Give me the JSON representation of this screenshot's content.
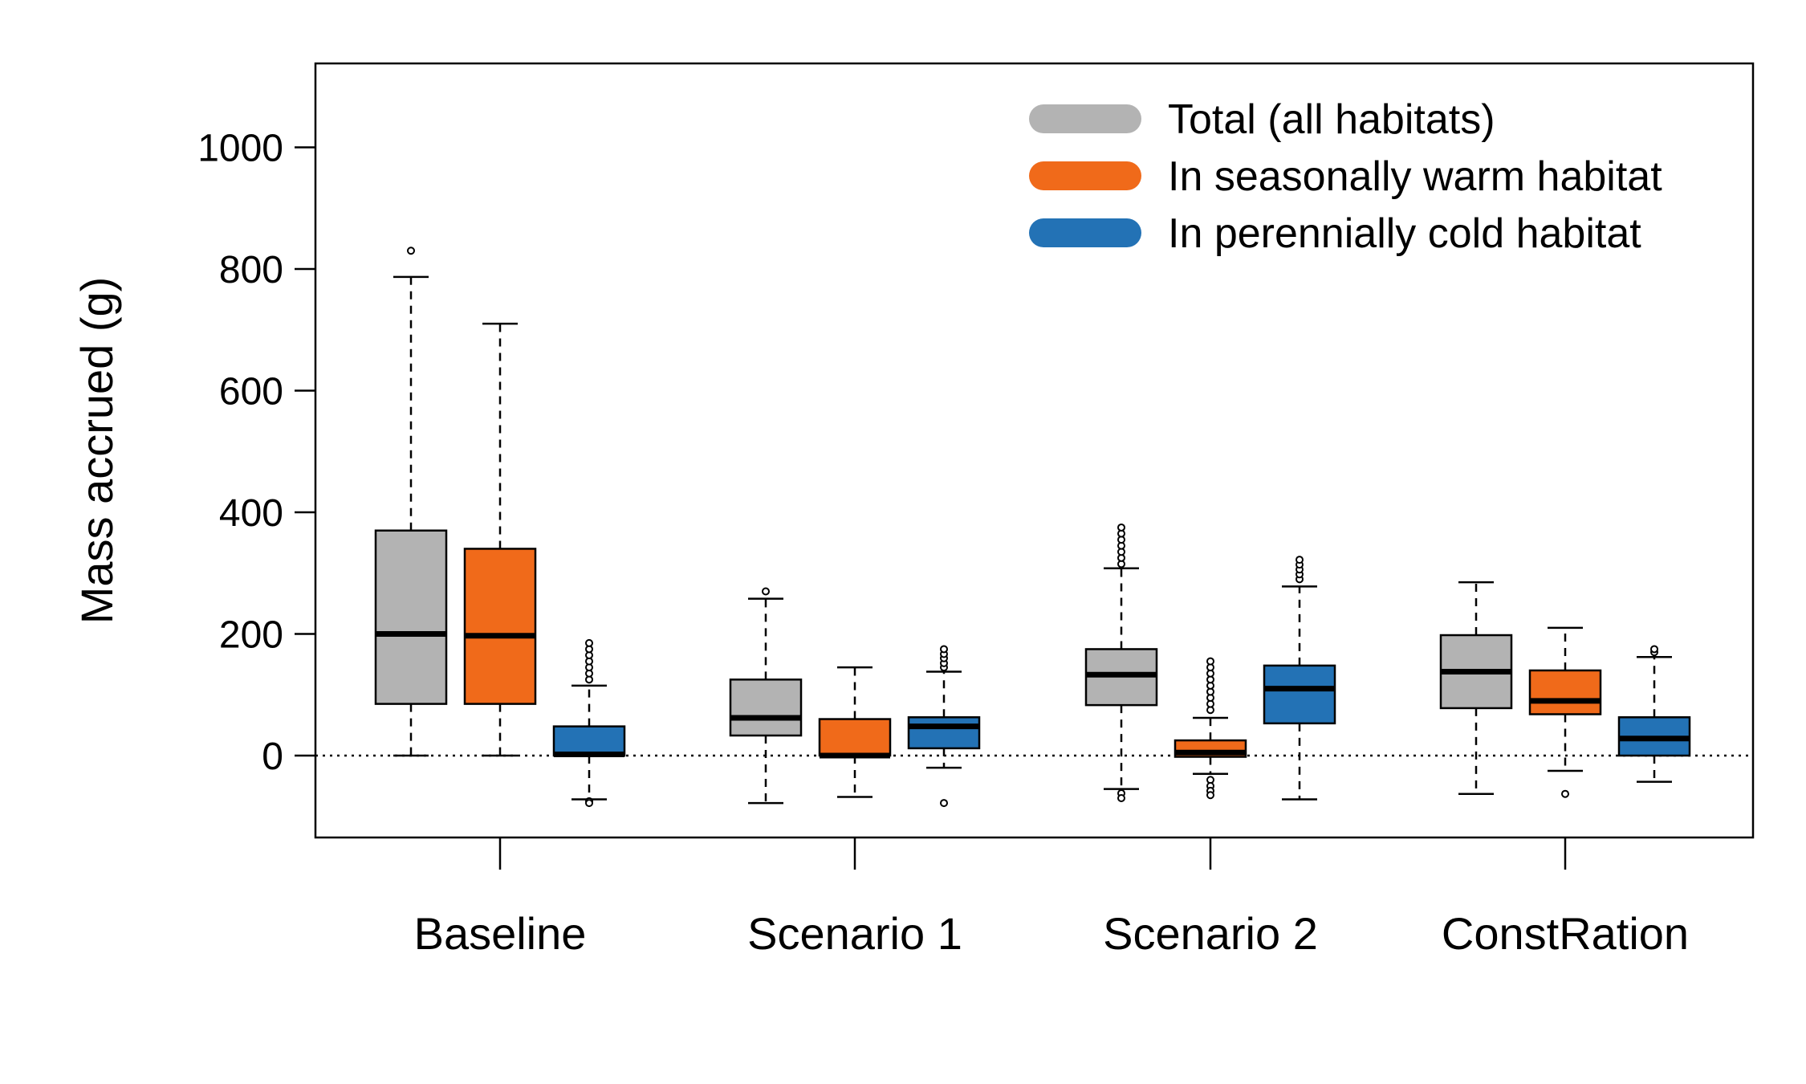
{
  "chart_data": {
    "type": "boxplot",
    "title": "",
    "xlabel": "",
    "ylabel": "Mass accrued (g)",
    "ylim": [
      -135,
      1130
    ],
    "yticks": [
      0,
      200,
      400,
      600,
      800,
      1000
    ],
    "reference_line": {
      "y": 0,
      "style": "dotted"
    },
    "legend_position": "top-right",
    "categories": [
      "Baseline",
      "Scenario 1",
      "Scenario 2",
      "ConstRation"
    ],
    "series": [
      {
        "name": "Total (all habitats)",
        "color": "#b3b3b3",
        "boxes": [
          {
            "whisker_low": 0,
            "q1": 85,
            "median": 200,
            "q3": 370,
            "whisker_high": 787,
            "outliers": [
              830
            ]
          },
          {
            "whisker_low": -78,
            "q1": 33,
            "median": 62,
            "q3": 125,
            "whisker_high": 258,
            "outliers": [
              270
            ]
          },
          {
            "whisker_low": -55,
            "q1": 83,
            "median": 133,
            "q3": 175,
            "whisker_high": 308,
            "outliers": [
              315,
              325,
              335,
              345,
              355,
              365,
              375,
              -62,
              -70
            ]
          },
          {
            "whisker_low": -63,
            "q1": 78,
            "median": 138,
            "q3": 198,
            "whisker_high": 285,
            "outliers": []
          }
        ]
      },
      {
        "name": "In seasonally warm habitat",
        "color": "#f06a1a",
        "boxes": [
          {
            "whisker_low": 0,
            "q1": 85,
            "median": 197,
            "q3": 340,
            "whisker_high": 710,
            "outliers": []
          },
          {
            "whisker_low": -68,
            "q1": 0,
            "median": 0,
            "q3": 60,
            "whisker_high": 145,
            "outliers": []
          },
          {
            "whisker_low": -30,
            "q1": -2,
            "median": 5,
            "q3": 25,
            "whisker_high": 62,
            "outliers": [
              75,
              85,
              95,
              105,
              115,
              125,
              135,
              145,
              155,
              -40,
              -50,
              -58,
              -65
            ]
          },
          {
            "whisker_low": -25,
            "q1": 68,
            "median": 90,
            "q3": 140,
            "whisker_high": 210,
            "outliers": [
              -63
            ]
          }
        ]
      },
      {
        "name": "In perennially cold habitat",
        "color": "#2372b5",
        "boxes": [
          {
            "whisker_low": -72,
            "q1": 0,
            "median": 2,
            "q3": 48,
            "whisker_high": 115,
            "outliers": [
              125,
              135,
              145,
              155,
              165,
              175,
              185,
              -75,
              -78
            ]
          },
          {
            "whisker_low": -20,
            "q1": 12,
            "median": 48,
            "q3": 63,
            "whisker_high": 138,
            "outliers": [
              145,
              152,
              160,
              167,
              175,
              -78
            ]
          },
          {
            "whisker_low": -72,
            "q1": 53,
            "median": 110,
            "q3": 148,
            "whisker_high": 278,
            "outliers": [
              290,
              298,
              306,
              314,
              322
            ]
          },
          {
            "whisker_low": -43,
            "q1": 0,
            "median": 28,
            "q3": 63,
            "whisker_high": 162,
            "outliers": [
              170,
              175
            ]
          }
        ]
      }
    ]
  }
}
